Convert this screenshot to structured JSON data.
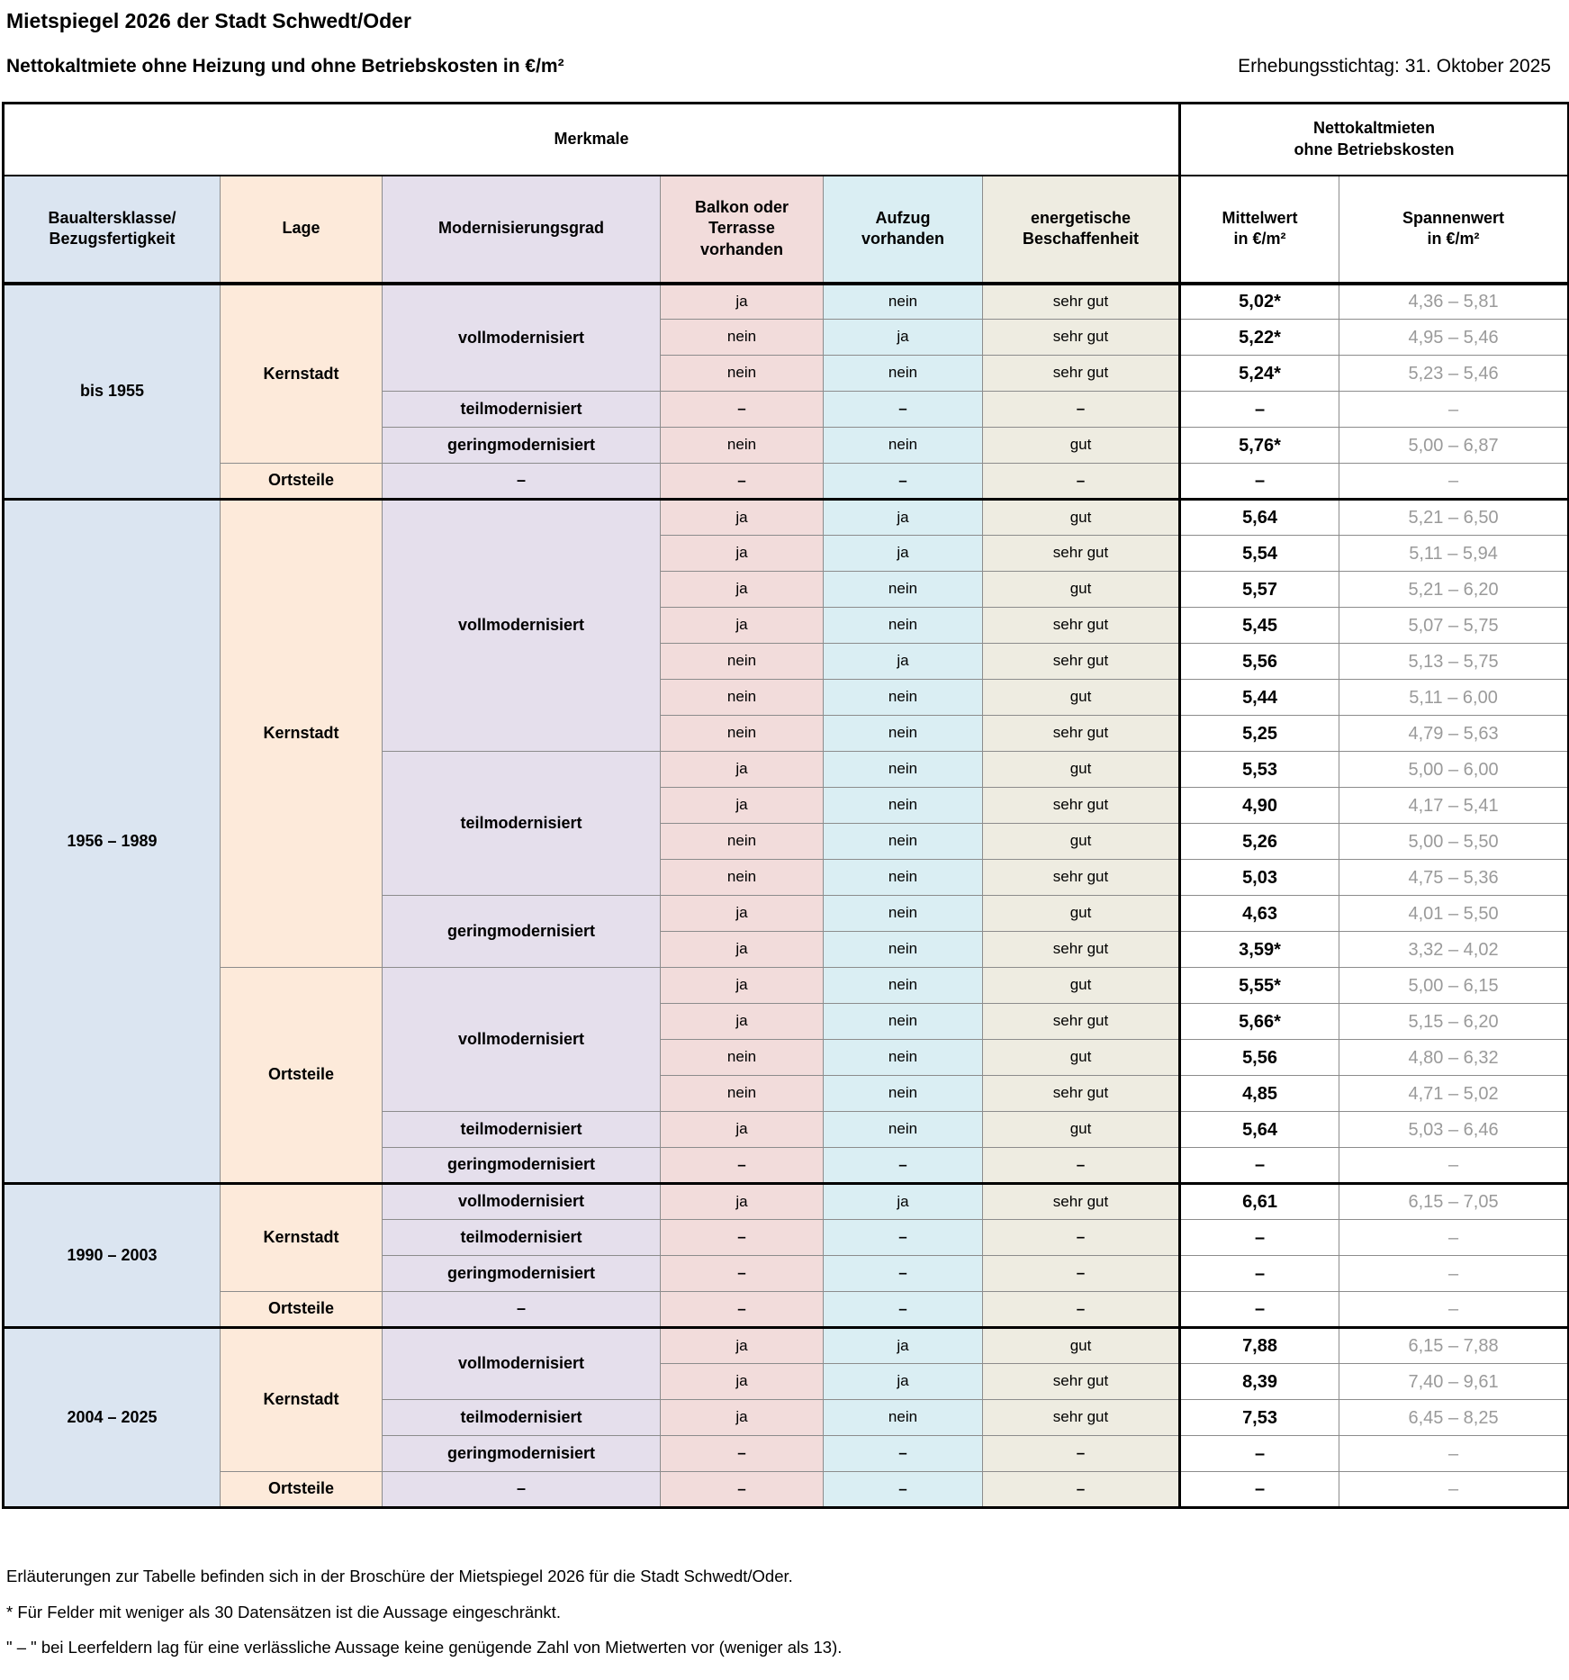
{
  "title": "Mietspiegel 2026 der Stadt Schwedt/Oder",
  "subtitle": "Nettokaltmiete ohne Heizung und ohne Betriebskosten in €/m²",
  "date_label": "Erhebungsstichtag: 31. Oktober 2025",
  "colors": {
    "baualtersklasse": "#dbe5f1",
    "lage": "#fdeada",
    "modernisierungsgrad": "#e5dfec",
    "balkon": "#f2dcdb",
    "aufzug": "#daeef3",
    "energie": "#eeece1",
    "border_thin": "#8c8c8c",
    "border_thick": "#000000",
    "spanne_text": "#9a9a9a"
  },
  "table": {
    "group_headers": {
      "merkmale": "Merkmale",
      "nettokaltmieten": "Nettokaltmieten\nohne Betriebskosten"
    },
    "columns": [
      {
        "label": "Baualtersklasse/\nBezugsfertigkeit"
      },
      {
        "label": "Lage"
      },
      {
        "label": "Modernisierungsgrad"
      },
      {
        "label": "Balkon oder\nTerrasse\nvorhanden"
      },
      {
        "label": "Aufzug\nvorhanden"
      },
      {
        "label": "energetische\nBeschaffenheit"
      },
      {
        "label": "Mittelwert\nin €/m²"
      },
      {
        "label": "Spannenwert\nin €/m²"
      }
    ],
    "sections": [
      {
        "age_class": "bis 1955",
        "lage_groups": [
          {
            "lage": "Kernstadt",
            "mod_groups": [
              {
                "grad": "vollmodernisiert",
                "rows": [
                  {
                    "balkon": "ja",
                    "aufzug": "nein",
                    "energie": "sehr gut",
                    "mittelwert": "5,02*",
                    "spannenwert": "4,36 – 5,81"
                  },
                  {
                    "balkon": "nein",
                    "aufzug": "ja",
                    "energie": "sehr gut",
                    "mittelwert": "5,22*",
                    "spannenwert": "4,95 – 5,46"
                  },
                  {
                    "balkon": "nein",
                    "aufzug": "nein",
                    "energie": "sehr gut",
                    "mittelwert": "5,24*",
                    "spannenwert": "5,23 – 5,46"
                  }
                ]
              },
              {
                "grad": "teilmodernisiert",
                "rows": [
                  {
                    "balkon": "–",
                    "aufzug": "–",
                    "energie": "–",
                    "mittelwert": "–",
                    "spannenwert": "–"
                  }
                ]
              },
              {
                "grad": "geringmodernisiert",
                "rows": [
                  {
                    "balkon": "nein",
                    "aufzug": "nein",
                    "energie": "gut",
                    "mittelwert": "5,76*",
                    "spannenwert": "5,00 – 6,87"
                  }
                ]
              }
            ]
          },
          {
            "lage": "Ortsteile",
            "mod_groups": [
              {
                "grad": "–",
                "rows": [
                  {
                    "balkon": "–",
                    "aufzug": "–",
                    "energie": "–",
                    "mittelwert": "–",
                    "spannenwert": "–"
                  }
                ]
              }
            ]
          }
        ]
      },
      {
        "age_class": "1956 – 1989",
        "lage_groups": [
          {
            "lage": "Kernstadt",
            "mod_groups": [
              {
                "grad": "vollmodernisiert",
                "rows": [
                  {
                    "balkon": "ja",
                    "aufzug": "ja",
                    "energie": "gut",
                    "mittelwert": "5,64",
                    "spannenwert": "5,21 – 6,50"
                  },
                  {
                    "balkon": "ja",
                    "aufzug": "ja",
                    "energie": "sehr gut",
                    "mittelwert": "5,54",
                    "spannenwert": "5,11 – 5,94"
                  },
                  {
                    "balkon": "ja",
                    "aufzug": "nein",
                    "energie": "gut",
                    "mittelwert": "5,57",
                    "spannenwert": "5,21 – 6,20"
                  },
                  {
                    "balkon": "ja",
                    "aufzug": "nein",
                    "energie": "sehr gut",
                    "mittelwert": "5,45",
                    "spannenwert": "5,07 – 5,75"
                  },
                  {
                    "balkon": "nein",
                    "aufzug": "ja",
                    "energie": "sehr gut",
                    "mittelwert": "5,56",
                    "spannenwert": "5,13 – 5,75"
                  },
                  {
                    "balkon": "nein",
                    "aufzug": "nein",
                    "energie": "gut",
                    "mittelwert": "5,44",
                    "spannenwert": "5,11 – 6,00"
                  },
                  {
                    "balkon": "nein",
                    "aufzug": "nein",
                    "energie": "sehr gut",
                    "mittelwert": "5,25",
                    "spannenwert": "4,79 – 5,63"
                  }
                ]
              },
              {
                "grad": "teilmodernisiert",
                "rows": [
                  {
                    "balkon": "ja",
                    "aufzug": "nein",
                    "energie": "gut",
                    "mittelwert": "5,53",
                    "spannenwert": "5,00 – 6,00"
                  },
                  {
                    "balkon": "ja",
                    "aufzug": "nein",
                    "energie": "sehr gut",
                    "mittelwert": "4,90",
                    "spannenwert": "4,17 – 5,41"
                  },
                  {
                    "balkon": "nein",
                    "aufzug": "nein",
                    "energie": "gut",
                    "mittelwert": "5,26",
                    "spannenwert": "5,00 – 5,50"
                  },
                  {
                    "balkon": "nein",
                    "aufzug": "nein",
                    "energie": "sehr gut",
                    "mittelwert": "5,03",
                    "spannenwert": "4,75 – 5,36"
                  }
                ]
              },
              {
                "grad": "geringmodernisiert",
                "rows": [
                  {
                    "balkon": "ja",
                    "aufzug": "nein",
                    "energie": "gut",
                    "mittelwert": "4,63",
                    "spannenwert": "4,01 – 5,50"
                  },
                  {
                    "balkon": "ja",
                    "aufzug": "nein",
                    "energie": "sehr gut",
                    "mittelwert": "3,59*",
                    "spannenwert": "3,32 – 4,02"
                  }
                ]
              }
            ]
          },
          {
            "lage": "Ortsteile",
            "mod_groups": [
              {
                "grad": "vollmodernisiert",
                "rows": [
                  {
                    "balkon": "ja",
                    "aufzug": "nein",
                    "energie": "gut",
                    "mittelwert": "5,55*",
                    "spannenwert": "5,00 – 6,15"
                  },
                  {
                    "balkon": "ja",
                    "aufzug": "nein",
                    "energie": "sehr gut",
                    "mittelwert": "5,66*",
                    "spannenwert": "5,15 – 6,20"
                  },
                  {
                    "balkon": "nein",
                    "aufzug": "nein",
                    "energie": "gut",
                    "mittelwert": "5,56",
                    "spannenwert": "4,80 – 6,32"
                  },
                  {
                    "balkon": "nein",
                    "aufzug": "nein",
                    "energie": "sehr gut",
                    "mittelwert": "4,85",
                    "spannenwert": "4,71 – 5,02"
                  }
                ]
              },
              {
                "grad": "teilmodernisiert",
                "rows": [
                  {
                    "balkon": "ja",
                    "aufzug": "nein",
                    "energie": "gut",
                    "mittelwert": "5,64",
                    "spannenwert": "5,03 – 6,46"
                  }
                ]
              },
              {
                "grad": "geringmodernisiert",
                "rows": [
                  {
                    "balkon": "–",
                    "aufzug": "–",
                    "energie": "–",
                    "mittelwert": "–",
                    "spannenwert": "–"
                  }
                ]
              }
            ]
          }
        ]
      },
      {
        "age_class": "1990 – 2003",
        "lage_groups": [
          {
            "lage": "Kernstadt",
            "mod_groups": [
              {
                "grad": "vollmodernisiert",
                "rows": [
                  {
                    "balkon": "ja",
                    "aufzug": "ja",
                    "energie": "sehr gut",
                    "mittelwert": "6,61",
                    "spannenwert": "6,15 – 7,05"
                  }
                ]
              },
              {
                "grad": "teilmodernisiert",
                "rows": [
                  {
                    "balkon": "–",
                    "aufzug": "–",
                    "energie": "–",
                    "mittelwert": "–",
                    "spannenwert": "–"
                  }
                ]
              },
              {
                "grad": "geringmodernisiert",
                "rows": [
                  {
                    "balkon": "–",
                    "aufzug": "–",
                    "energie": "–",
                    "mittelwert": "–",
                    "spannenwert": "–"
                  }
                ]
              }
            ]
          },
          {
            "lage": "Ortsteile",
            "mod_groups": [
              {
                "grad": "–",
                "rows": [
                  {
                    "balkon": "–",
                    "aufzug": "–",
                    "energie": "–",
                    "mittelwert": "–",
                    "spannenwert": "–"
                  }
                ]
              }
            ]
          }
        ]
      },
      {
        "age_class": "2004 – 2025",
        "lage_groups": [
          {
            "lage": "Kernstadt",
            "mod_groups": [
              {
                "grad": "vollmodernisiert",
                "rows": [
                  {
                    "balkon": "ja",
                    "aufzug": "ja",
                    "energie": "gut",
                    "mittelwert": "7,88",
                    "spannenwert": "6,15 – 7,88"
                  },
                  {
                    "balkon": "ja",
                    "aufzug": "ja",
                    "energie": "sehr gut",
                    "mittelwert": "8,39",
                    "spannenwert": "7,40 – 9,61"
                  }
                ]
              },
              {
                "grad": "teilmodernisiert",
                "rows": [
                  {
                    "balkon": "ja",
                    "aufzug": "nein",
                    "energie": "sehr gut",
                    "mittelwert": "7,53",
                    "spannenwert": "6,45 – 8,25"
                  }
                ]
              },
              {
                "grad": "geringmodernisiert",
                "rows": [
                  {
                    "balkon": "–",
                    "aufzug": "–",
                    "energie": "–",
                    "mittelwert": "–",
                    "spannenwert": "–"
                  }
                ]
              }
            ]
          },
          {
            "lage": "Ortsteile",
            "mod_groups": [
              {
                "grad": "–",
                "rows": [
                  {
                    "balkon": "–",
                    "aufzug": "–",
                    "energie": "–",
                    "mittelwert": "–",
                    "spannenwert": "–"
                  }
                ]
              }
            ]
          }
        ]
      }
    ]
  },
  "footnotes": [
    "Erläuterungen zur Tabelle befinden sich in der Broschüre der Mietspiegel 2026 für die Stadt Schwedt/Oder.",
    "* Für Felder mit weniger als 30 Datensätzen ist die Aussage eingeschränkt.",
    "\" – \" bei Leerfeldern lag für eine verlässliche Aussage keine genügende Zahl von Mietwerten vor (weniger als 13)."
  ]
}
